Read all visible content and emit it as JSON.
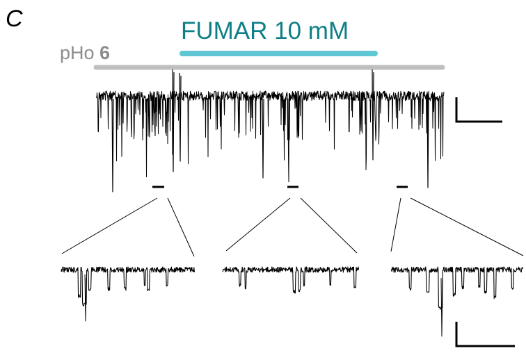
{
  "figure": {
    "panel_letter": "C",
    "application_bar": {
      "label": "FUMAR 10 mM",
      "color": "#5fc6d3"
    },
    "ph_bar": {
      "label_prefix": "pHo ",
      "label_value": "6",
      "color": "#bfbfbf",
      "text_color": "#8c8c8c"
    },
    "trace_color": "#000000",
    "zoom_segments": 3,
    "scale_bars": 2
  }
}
